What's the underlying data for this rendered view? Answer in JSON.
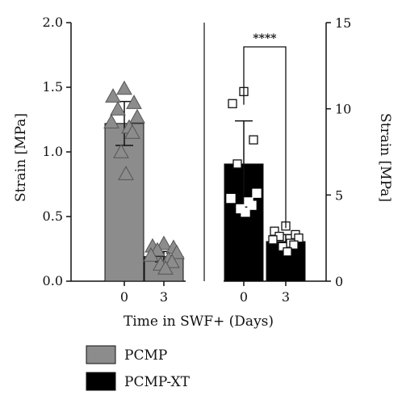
{
  "chart_data": {
    "type": "bar",
    "x_label": "Time in SWF+ (Days)",
    "groups": [
      {
        "name": "PCMP",
        "color": "#8c8c8c",
        "axis": "left",
        "ylabel": "Strain [MPa]",
        "ylim": [
          0,
          2.0
        ],
        "yticks": [
          "0.0",
          "0.5",
          "1.0",
          "1.5",
          "2.0"
        ],
        "ytick_values": [
          0,
          0.5,
          1.0,
          1.5,
          2.0
        ],
        "categories": [
          "0",
          "3"
        ],
        "values": [
          1.22,
          0.19
        ],
        "errors": [
          0.17,
          0.04
        ],
        "marker": "triangle",
        "points": [
          [
            1.49,
            1.43,
            1.38,
            1.33,
            1.27,
            1.23,
            1.19,
            1.15,
            1.0,
            0.83
          ],
          [
            0.29,
            0.27,
            0.26,
            0.24,
            0.22,
            0.2,
            0.17,
            0.15,
            0.13,
            0.1
          ]
        ]
      },
      {
        "name": "PCMP-XT",
        "color": "#000000",
        "axis": "right",
        "ylabel": "Strain [MPa]",
        "ylim": [
          0,
          15
        ],
        "yticks": [
          "0",
          "5",
          "10",
          "15"
        ],
        "ytick_values": [
          0,
          5,
          10,
          15
        ],
        "categories": [
          "0",
          "3"
        ],
        "values": [
          6.8,
          2.3
        ],
        "errors": [
          2.5,
          0.4
        ],
        "marker": "square",
        "points": [
          [
            11.0,
            10.3,
            8.2,
            6.8,
            5.1,
            4.8,
            4.6,
            4.4,
            4.2,
            4.0
          ],
          [
            3.2,
            2.9,
            2.7,
            2.6,
            2.5,
            2.4,
            2.2,
            2.1,
            2.0,
            1.7
          ]
        ]
      }
    ],
    "significance": "****",
    "legend": [
      "PCMP",
      "PCMP-XT"
    ],
    "legend_position": "bottom-left"
  }
}
